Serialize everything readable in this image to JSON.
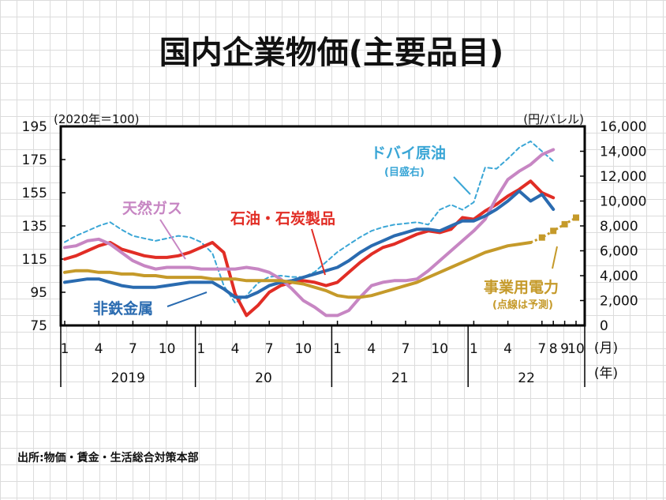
{
  "title": "国内企業物価(主要品目)",
  "left_unit": "(2020年＝100)",
  "right_unit": "(円/バレル)",
  "source": "出所:物価・賃金・生活総合対策本部",
  "month_unit": "(月)",
  "year_unit": "(年)",
  "chart_data": {
    "type": "line",
    "title": "国内企業物価(主要品目)",
    "y_left": {
      "range": [
        75,
        195
      ],
      "ticks": [
        "195",
        "175",
        "155",
        "135",
        "115",
        "95",
        "75"
      ]
    },
    "y_right": {
      "range": [
        0,
        16000
      ],
      "ticks": [
        "16,000",
        "14,000",
        "12,000",
        "10,000",
        "8,000",
        "6,000",
        "4,000",
        "2,000",
        "0"
      ]
    },
    "x_months": {
      "start": "2019-01",
      "end": "2022-10"
    },
    "month_ticks": [
      {
        "i": 0,
        "label": "1"
      },
      {
        "i": 3,
        "label": "4"
      },
      {
        "i": 6,
        "label": "7"
      },
      {
        "i": 9,
        "label": "10"
      },
      {
        "i": 12,
        "label": "1"
      },
      {
        "i": 15,
        "label": "4"
      },
      {
        "i": 18,
        "label": "7"
      },
      {
        "i": 21,
        "label": "10"
      },
      {
        "i": 24,
        "label": "1"
      },
      {
        "i": 27,
        "label": "4"
      },
      {
        "i": 30,
        "label": "7"
      },
      {
        "i": 33,
        "label": "10"
      },
      {
        "i": 36,
        "label": "1"
      },
      {
        "i": 39,
        "label": "4"
      },
      {
        "i": 42,
        "label": "7"
      },
      {
        "i": 43,
        "label": "8"
      },
      {
        "i": 44,
        "label": "9"
      },
      {
        "i": 45,
        "label": "10"
      }
    ],
    "years": [
      "2019",
      "20",
      "21",
      "22"
    ],
    "series": [
      {
        "name": "ドバイ原油",
        "sublabel": "(目盛右)",
        "axis": "right",
        "color": "#3aa6d6",
        "style": "dashed",
        "values": [
          6700,
          7200,
          7600,
          8000,
          8300,
          7700,
          7200,
          7000,
          6800,
          7000,
          7200,
          7100,
          6700,
          5800,
          3200,
          1800,
          2400,
          3400,
          3900,
          4000,
          3900,
          3900,
          4300,
          5100,
          5900,
          6500,
          7100,
          7600,
          7900,
          8100,
          8200,
          8300,
          8100,
          9300,
          9700,
          9300,
          9900,
          12700,
          12600,
          13400,
          14300,
          14800,
          14000,
          13200
        ]
      },
      {
        "name": "石油・石炭製品",
        "axis": "left",
        "color": "#e12d25",
        "style": "solid",
        "values": [
          115,
          117,
          120,
          123,
          125,
          121,
          119,
          117,
          116,
          116,
          117,
          119,
          122,
          125,
          119,
          94,
          81,
          87,
          95,
          99,
          101,
          102,
          101,
          99,
          101,
          107,
          113,
          118,
          122,
          124,
          127,
          130,
          132,
          131,
          133,
          140,
          139,
          144,
          148,
          153,
          157,
          162,
          155,
          152
        ]
      },
      {
        "name": "天然ガス",
        "axis": "left",
        "color": "#c786c3",
        "style": "solid",
        "values": [
          122,
          123,
          126,
          127,
          124,
          119,
          114,
          111,
          109,
          110,
          110,
          110,
          109,
          109,
          109,
          109,
          110,
          109,
          107,
          103,
          97,
          90,
          86,
          81,
          81,
          84,
          92,
          99,
          101,
          102,
          102,
          103,
          108,
          114,
          120,
          126,
          132,
          139,
          152,
          163,
          168,
          172,
          178,
          181
        ]
      },
      {
        "name": "非鉄金属",
        "axis": "left",
        "color": "#2a6bb0",
        "style": "solid",
        "values": [
          101,
          102,
          103,
          103,
          101,
          99,
          98,
          98,
          98,
          99,
          100,
          101,
          101,
          101,
          97,
          92,
          92,
          95,
          99,
          101,
          102,
          104,
          106,
          108,
          110,
          114,
          119,
          123,
          126,
          129,
          131,
          133,
          133,
          132,
          135,
          138,
          138,
          141,
          145,
          150,
          156,
          150,
          154,
          145
        ]
      },
      {
        "name": "事業用電力",
        "sublabel": "(点線は予測)",
        "axis": "left",
        "color": "#c59a2a",
        "style": "solid",
        "forecast_from": 41,
        "values": [
          107,
          108,
          108,
          107,
          107,
          106,
          106,
          105,
          105,
          104,
          104,
          104,
          104,
          103,
          103,
          103,
          102,
          102,
          102,
          102,
          101,
          100,
          98,
          96,
          93,
          92,
          92,
          93,
          95,
          97,
          99,
          101,
          104,
          107,
          110,
          113,
          116,
          119,
          121,
          123,
          124,
          125,
          128,
          132,
          136,
          140
        ]
      }
    ]
  },
  "labels": {
    "dubai": "ドバイ原油",
    "dubai_sub": "(目盛右)",
    "oil": "石油・石炭製品",
    "gas": "天然ガス",
    "metal": "非鉄金属",
    "power": "事業用電力",
    "power_sub": "(点線は予測)"
  }
}
